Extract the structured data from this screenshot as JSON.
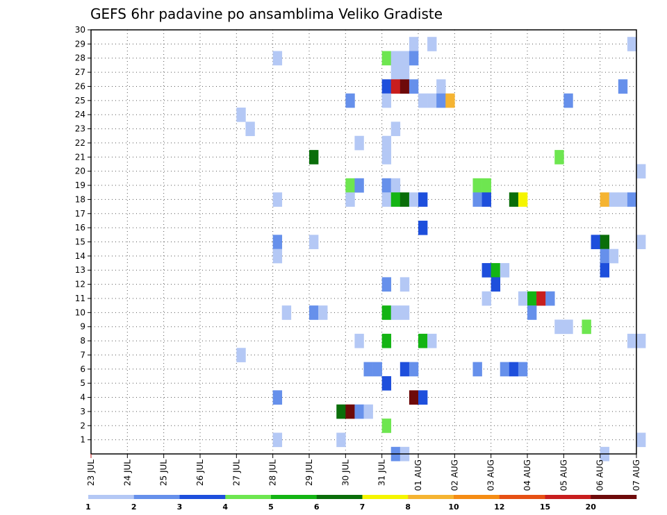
{
  "chart_data": {
    "type": "heatmap",
    "title": "GEFS 6hr padavine po ansamblima Veliko Gradiste",
    "x_ticks": [
      "23 JUL",
      "24 JUL",
      "25 JUL",
      "26 JUL",
      "27 JUL",
      "28 JUL",
      "29 JUL",
      "30 JUL",
      "31 JUL",
      "01 AUG",
      "02 AUG",
      "03 AUG",
      "04 AUG",
      "05 AUG",
      "06 AUG",
      "07 AUG"
    ],
    "x_range_days": [
      0,
      15
    ],
    "y_ticks": [
      1,
      2,
      3,
      4,
      5,
      6,
      7,
      8,
      9,
      10,
      11,
      12,
      13,
      14,
      15,
      16,
      17,
      18,
      19,
      20,
      21,
      22,
      23,
      24,
      25,
      26,
      27,
      28,
      29,
      30
    ],
    "y_range": [
      0,
      30
    ],
    "grid": true,
    "color_levels": [
      {
        "label": "1",
        "color": "#b4c8f5"
      },
      {
        "label": "2",
        "color": "#6690eb"
      },
      {
        "label": "3",
        "color": "#1e4fdc"
      },
      {
        "label": "4",
        "color": "#6ee650"
      },
      {
        "label": "5",
        "color": "#14b414"
      },
      {
        "label": "6",
        "color": "#0a6e0a"
      },
      {
        "label": "7",
        "color": "#f5f500"
      },
      {
        "label": "8",
        "color": "#f5b432"
      },
      {
        "label": "10",
        "color": "#f58c14"
      },
      {
        "label": "12",
        "color": "#e65014"
      },
      {
        "label": "15",
        "color": "#c81e1e"
      },
      {
        "label": "20",
        "color": "#6e0a0a"
      }
    ],
    "cells": [
      {
        "day": 8.75,
        "member": 29,
        "level": 0
      },
      {
        "day": 9.25,
        "member": 29,
        "level": 0
      },
      {
        "day": 14.75,
        "member": 29,
        "level": 0
      },
      {
        "day": 5.0,
        "member": 28,
        "level": 0
      },
      {
        "day": 8.0,
        "member": 28,
        "level": 3
      },
      {
        "day": 8.25,
        "member": 28,
        "level": 0
      },
      {
        "day": 8.5,
        "member": 28,
        "level": 0
      },
      {
        "day": 8.75,
        "member": 28,
        "level": 0
      },
      {
        "day": 8.75,
        "member": 28,
        "level": 1
      },
      {
        "day": 8.25,
        "member": 27,
        "level": 0
      },
      {
        "day": 8.5,
        "member": 27,
        "level": 0
      },
      {
        "day": 8.0,
        "member": 26,
        "level": 2
      },
      {
        "day": 8.25,
        "member": 26,
        "level": 10
      },
      {
        "day": 8.5,
        "member": 26,
        "level": 11
      },
      {
        "day": 8.75,
        "member": 26,
        "level": 1
      },
      {
        "day": 9.5,
        "member": 26,
        "level": 0
      },
      {
        "day": 14.5,
        "member": 26,
        "level": 1
      },
      {
        "day": 7.0,
        "member": 25,
        "level": 1
      },
      {
        "day": 8.0,
        "member": 25,
        "level": 0
      },
      {
        "day": 9.0,
        "member": 25,
        "level": 0
      },
      {
        "day": 9.25,
        "member": 25,
        "level": 0
      },
      {
        "day": 9.5,
        "member": 25,
        "level": 1
      },
      {
        "day": 9.75,
        "member": 25,
        "level": 7
      },
      {
        "day": 13.0,
        "member": 25,
        "level": 1
      },
      {
        "day": 4.0,
        "member": 24,
        "level": 0
      },
      {
        "day": 4.25,
        "member": 23,
        "level": 0
      },
      {
        "day": 8.25,
        "member": 23,
        "level": 0
      },
      {
        "day": 7.25,
        "member": 22,
        "level": 0
      },
      {
        "day": 8.0,
        "member": 22,
        "level": 0
      },
      {
        "day": 6.0,
        "member": 21,
        "level": 5
      },
      {
        "day": 8.0,
        "member": 21,
        "level": 0
      },
      {
        "day": 12.75,
        "member": 21,
        "level": 3
      },
      {
        "day": 15.0,
        "member": 20,
        "level": 0
      },
      {
        "day": 7.0,
        "member": 19,
        "level": 3
      },
      {
        "day": 7.25,
        "member": 19,
        "level": 1
      },
      {
        "day": 8.0,
        "member": 19,
        "level": 1
      },
      {
        "day": 8.25,
        "member": 19,
        "level": 0
      },
      {
        "day": 10.5,
        "member": 19,
        "level": 3
      },
      {
        "day": 10.75,
        "member": 19,
        "level": 3
      },
      {
        "day": 5.0,
        "member": 18,
        "level": 0
      },
      {
        "day": 7.0,
        "member": 18,
        "level": 0
      },
      {
        "day": 8.0,
        "member": 18,
        "level": 0
      },
      {
        "day": 8.25,
        "member": 18,
        "level": 4
      },
      {
        "day": 8.5,
        "member": 18,
        "level": 5
      },
      {
        "day": 8.75,
        "member": 18,
        "level": 0
      },
      {
        "day": 9.0,
        "member": 18,
        "level": 2
      },
      {
        "day": 10.5,
        "member": 18,
        "level": 1
      },
      {
        "day": 10.75,
        "member": 18,
        "level": 2
      },
      {
        "day": 11.5,
        "member": 18,
        "level": 5
      },
      {
        "day": 11.75,
        "member": 18,
        "level": 6
      },
      {
        "day": 14.0,
        "member": 18,
        "level": 7
      },
      {
        "day": 14.25,
        "member": 18,
        "level": 0
      },
      {
        "day": 14.5,
        "member": 18,
        "level": 0
      },
      {
        "day": 14.75,
        "member": 18,
        "level": 1
      },
      {
        "day": 9.0,
        "member": 16,
        "level": 2
      },
      {
        "day": 5.0,
        "member": 15,
        "level": 1
      },
      {
        "day": 6.0,
        "member": 15,
        "level": 0
      },
      {
        "day": 13.75,
        "member": 15,
        "level": 2
      },
      {
        "day": 14.0,
        "member": 15,
        "level": 5
      },
      {
        "day": 15.0,
        "member": 15,
        "level": 0
      },
      {
        "day": 5.0,
        "member": 14,
        "level": 0
      },
      {
        "day": 14.0,
        "member": 14,
        "level": 1
      },
      {
        "day": 14.25,
        "member": 14,
        "level": 0
      },
      {
        "day": 10.75,
        "member": 13,
        "level": 2
      },
      {
        "day": 11.0,
        "member": 13,
        "level": 4
      },
      {
        "day": 11.25,
        "member": 13,
        "level": 0
      },
      {
        "day": 14.0,
        "member": 13,
        "level": 2
      },
      {
        "day": 8.0,
        "member": 12,
        "level": 1
      },
      {
        "day": 8.5,
        "member": 12,
        "level": 0
      },
      {
        "day": 11.0,
        "member": 12,
        "level": 2
      },
      {
        "day": 10.75,
        "member": 11,
        "level": 0
      },
      {
        "day": 11.75,
        "member": 11,
        "level": 0
      },
      {
        "day": 12.0,
        "member": 11,
        "level": 4
      },
      {
        "day": 12.25,
        "member": 11,
        "level": 10
      },
      {
        "day": 12.5,
        "member": 11,
        "level": 1
      },
      {
        "day": 5.25,
        "member": 10,
        "level": 0
      },
      {
        "day": 6.0,
        "member": 10,
        "level": 1
      },
      {
        "day": 6.25,
        "member": 10,
        "level": 0
      },
      {
        "day": 8.0,
        "member": 10,
        "level": 4
      },
      {
        "day": 8.25,
        "member": 10,
        "level": 0
      },
      {
        "day": 8.5,
        "member": 10,
        "level": 0
      },
      {
        "day": 12.0,
        "member": 10,
        "level": 1
      },
      {
        "day": 12.75,
        "member": 9,
        "level": 0
      },
      {
        "day": 13.0,
        "member": 9,
        "level": 0
      },
      {
        "day": 13.5,
        "member": 9,
        "level": 3
      },
      {
        "day": 7.25,
        "member": 8,
        "level": 0
      },
      {
        "day": 8.0,
        "member": 8,
        "level": 4
      },
      {
        "day": 9.0,
        "member": 8,
        "level": 4
      },
      {
        "day": 9.25,
        "member": 8,
        "level": 0
      },
      {
        "day": 14.75,
        "member": 8,
        "level": 0
      },
      {
        "day": 15.0,
        "member": 8,
        "level": 0
      },
      {
        "day": 4.0,
        "member": 7,
        "level": 0
      },
      {
        "day": 7.5,
        "member": 6,
        "level": 1
      },
      {
        "day": 7.75,
        "member": 6,
        "level": 1
      },
      {
        "day": 8.5,
        "member": 6,
        "level": 2
      },
      {
        "day": 8.75,
        "member": 6,
        "level": 1
      },
      {
        "day": 10.5,
        "member": 6,
        "level": 1
      },
      {
        "day": 11.25,
        "member": 6,
        "level": 1
      },
      {
        "day": 11.5,
        "member": 6,
        "level": 2
      },
      {
        "day": 11.75,
        "member": 6,
        "level": 1
      },
      {
        "day": 8.0,
        "member": 5,
        "level": 2
      },
      {
        "day": 5.0,
        "member": 4,
        "level": 1
      },
      {
        "day": 8.75,
        "member": 4,
        "level": 11
      },
      {
        "day": 9.0,
        "member": 4,
        "level": 2
      },
      {
        "day": 6.75,
        "member": 3,
        "level": 5
      },
      {
        "day": 7.0,
        "member": 3,
        "level": 11
      },
      {
        "day": 7.25,
        "member": 3,
        "level": 1
      },
      {
        "day": 7.5,
        "member": 3,
        "level": 0
      },
      {
        "day": 8.0,
        "member": 2,
        "level": 3
      },
      {
        "day": 5.0,
        "member": 1,
        "level": 0
      },
      {
        "day": 6.75,
        "member": 1,
        "level": 0
      },
      {
        "day": 15.0,
        "member": 1,
        "level": 0
      },
      {
        "day": 8.25,
        "member": 0,
        "level": 1
      },
      {
        "day": 8.5,
        "member": 0,
        "level": 0
      },
      {
        "day": 14.0,
        "member": 0,
        "level": 0
      }
    ]
  }
}
